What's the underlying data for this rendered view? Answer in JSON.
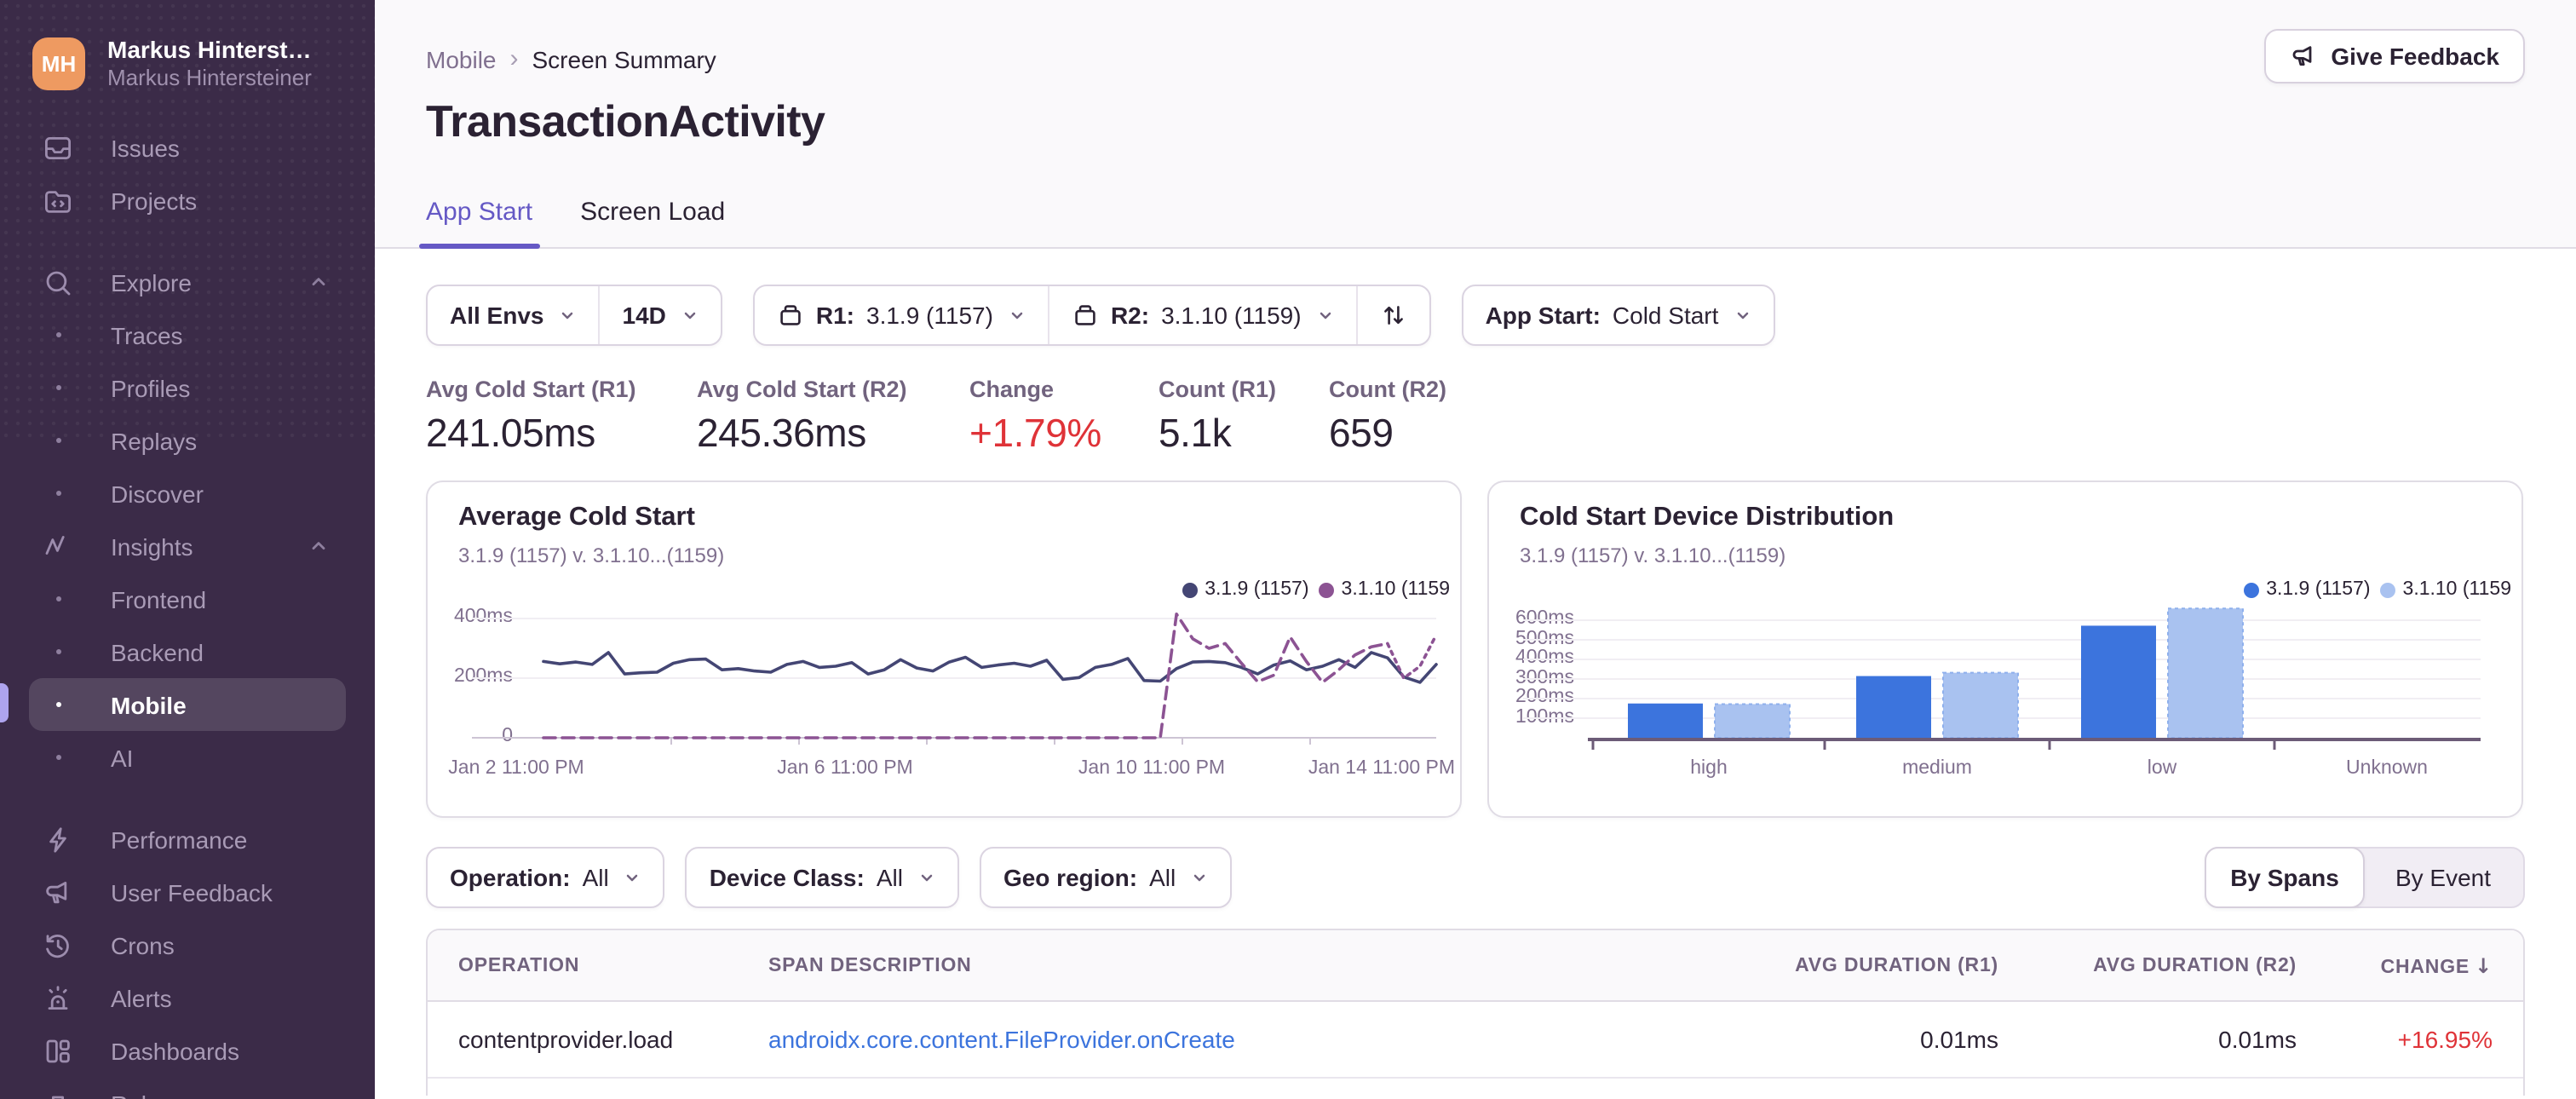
{
  "colors": {
    "accent": "#6559C5",
    "sidebar_bg": "#3B2B48",
    "avatar": "#EE9A61",
    "link": "#3C74DD",
    "red": "#DF3338",
    "header_bg": "#FAF9FB",
    "border": "#E0DCE5"
  },
  "sidebar": {
    "user": {
      "initials": "MH",
      "name": "Markus Hinterst…",
      "org": "Markus Hintersteiner"
    },
    "items": [
      {
        "label": "Issues"
      },
      {
        "label": "Projects"
      },
      {
        "label": "Explore"
      },
      {
        "label": "Traces"
      },
      {
        "label": "Profiles"
      },
      {
        "label": "Replays"
      },
      {
        "label": "Discover"
      },
      {
        "label": "Insights"
      },
      {
        "label": "Frontend"
      },
      {
        "label": "Backend"
      },
      {
        "label": "Mobile",
        "active": true
      },
      {
        "label": "AI"
      },
      {
        "label": "Performance"
      },
      {
        "label": "User Feedback"
      },
      {
        "label": "Crons"
      },
      {
        "label": "Alerts"
      },
      {
        "label": "Dashboards"
      },
      {
        "label": "Releases"
      }
    ]
  },
  "header": {
    "breadcrumb": {
      "section": "Mobile",
      "separator": "›",
      "page": "Screen Summary"
    },
    "title": "TransactionActivity",
    "feedback_button": "Give Feedback",
    "tabs": [
      {
        "label": "App Start",
        "active": true
      },
      {
        "label": "Screen Load"
      }
    ]
  },
  "filters_primary": {
    "environment": "All Envs",
    "date_range": "14D",
    "r1_label": "R1:",
    "r1_value": "3.1.9 (1157)",
    "r2_label": "R2:",
    "r2_value": "3.1.10 (1159)",
    "app_start_label": "App Start:",
    "app_start_value": "Cold Start"
  },
  "metrics": [
    {
      "label": "Avg Cold Start (R1)",
      "value": "241.05ms"
    },
    {
      "label": "Avg Cold Start (R2)",
      "value": "245.36ms"
    },
    {
      "label": "Change",
      "value": "+1.79%",
      "color": "#DF3338"
    },
    {
      "label": "Count (R1)",
      "value": "5.1k"
    },
    {
      "label": "Count (R2)",
      "value": "659"
    }
  ],
  "chart_data": [
    {
      "type": "line",
      "title": "Average Cold Start",
      "subtitle": "3.1.9 (1157) v. 3.1.10...(1159)",
      "legend": [
        {
          "label": "3.1.9 (1157)",
          "color": "#444674"
        },
        {
          "label": "3.1.10 (1159",
          "color": "#8C5393"
        }
      ],
      "ylim": [
        0,
        450
      ],
      "yticks": [
        {
          "v": 400,
          "label": "400ms"
        },
        {
          "v": 200,
          "label": "200ms"
        },
        {
          "v": 0,
          "label": "0"
        }
      ],
      "x_labels": [
        "Jan 2 11:00 PM",
        "Jan 6 11:00 PM",
        "Jan 10 11:00 PM",
        "Jan 14 11:00 PM"
      ],
      "series": [
        {
          "name": "3.1.9 (1157)",
          "color": "#444674",
          "dash": "solid",
          "values": [
            256,
            248,
            254,
            246,
            286,
            214,
            218,
            220,
            250,
            262,
            264,
            228,
            232,
            224,
            220,
            246,
            256,
            236,
            240,
            252,
            214,
            228,
            262,
            234,
            224,
            254,
            270,
            236,
            244,
            250,
            240,
            260,
            196,
            202,
            236,
            246,
            266,
            192,
            190,
            232,
            254,
            256,
            252,
            236,
            214,
            244,
            258,
            228,
            240,
            262,
            236,
            286,
            268,
            204,
            186,
            246
          ]
        },
        {
          "name": "3.1.10 (1159)",
          "color": "#8C5393",
          "dash": "dashed",
          "dotted_tail": 3,
          "values": [
            0,
            0,
            0,
            0,
            0,
            0,
            0,
            0,
            0,
            0,
            0,
            0,
            0,
            0,
            0,
            0,
            0,
            0,
            0,
            0,
            0,
            0,
            0,
            0,
            0,
            0,
            0,
            0,
            0,
            0,
            0,
            0,
            0,
            0,
            0,
            0,
            0,
            0,
            0,
            415,
            332,
            300,
            316,
            250,
            188,
            210,
            338,
            256,
            186,
            228,
            278,
            305,
            316,
            200,
            240,
            345
          ]
        }
      ]
    },
    {
      "type": "bar",
      "title": "Cold Start Device Distribution",
      "subtitle": "3.1.9 (1157) v. 3.1.10...(1159)",
      "legend": [
        {
          "label": "3.1.9 (1157)",
          "color": "#3C74DD"
        },
        {
          "label": "3.1.10 (1159",
          "color": "#A9C2F0"
        }
      ],
      "ylim": [
        0,
        700
      ],
      "yticks": [
        {
          "v": 600,
          "label": "600ms"
        },
        {
          "v": 500,
          "label": "500ms"
        },
        {
          "v": 400,
          "label": "400ms"
        },
        {
          "v": 300,
          "label": "300ms"
        },
        {
          "v": 200,
          "label": "200ms"
        },
        {
          "v": 100,
          "label": "100ms"
        }
      ],
      "categories": [
        "high",
        "medium",
        "low",
        "Unknown"
      ],
      "series": [
        {
          "name": "3.1.9 (1157)",
          "color": "#3C74DD",
          "values": [
            175,
            315,
            572,
            null
          ]
        },
        {
          "name": "3.1.10 (1159)",
          "color": "#A9C2F0",
          "values": [
            172,
            332,
            660,
            null
          ]
        }
      ]
    }
  ],
  "filters_secondary": {
    "operation_label": "Operation:",
    "operation_value": "All",
    "device_class_label": "Device Class:",
    "device_class_value": "All",
    "geo_label": "Geo region:",
    "geo_value": "All",
    "view_toggle": [
      {
        "label": "By Spans",
        "active": true
      },
      {
        "label": "By Event"
      }
    ]
  },
  "table": {
    "columns": [
      "OPERATION",
      "SPAN DESCRIPTION",
      "AVG DURATION (R1)",
      "AVG DURATION (R2)",
      "CHANGE"
    ],
    "sort_arrow": "↓",
    "rows": [
      {
        "operation": "contentprovider.load",
        "description": "androidx.core.content.FileProvider.onCreate",
        "avg_r1": "0.01ms",
        "avg_r2": "0.01ms",
        "change": "+16.95%",
        "change_color": "#DF3338"
      }
    ]
  }
}
